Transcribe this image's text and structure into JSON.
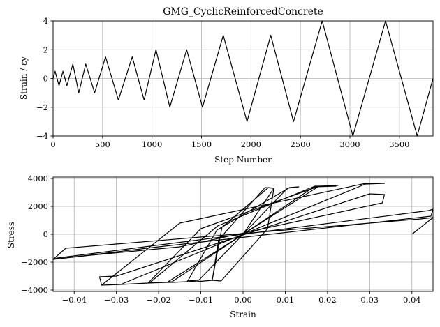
{
  "chart_data": [
    {
      "type": "line",
      "title": "GMG_CyclicReinforcedConcrete",
      "xlabel": "Step Number",
      "ylabel": "Strain / εy",
      "xlim": [
        0,
        3840
      ],
      "ylim": [
        -4,
        4
      ],
      "xticks": [
        0,
        500,
        1000,
        1500,
        2000,
        2500,
        3000,
        3500
      ],
      "xtick_labels": [
        "0",
        "500",
        "1000",
        "1500",
        "2000",
        "2500",
        "3000",
        "3500"
      ],
      "yticks": [
        -4,
        -2,
        0,
        2,
        4
      ],
      "ytick_labels": [
        "−4",
        "−2",
        "0",
        "2",
        "4"
      ],
      "grid": true,
      "series": [
        {
          "x": [
            0,
            20,
            60,
            100,
            140,
            200,
            260,
            330,
            420,
            530,
            660,
            800,
            920,
            1040,
            1180,
            1350,
            1510,
            1720,
            1960,
            2200,
            2430,
            2720,
            3030,
            3360,
            3680,
            3840
          ],
          "y": [
            0,
            0.5,
            -0.5,
            0.5,
            -0.5,
            1,
            -1,
            1,
            -1,
            1.5,
            -1.5,
            1.5,
            -1.5,
            2,
            -2,
            2,
            -2,
            3,
            -3,
            3,
            -3,
            4,
            -4,
            4,
            -4,
            0
          ]
        }
      ]
    },
    {
      "type": "line",
      "title": "",
      "xlabel": "Strain",
      "ylabel": "Stress",
      "xlim": [
        -0.045,
        0.045
      ],
      "ylim": [
        -4100,
        4100
      ],
      "xticks": [
        -0.04,
        -0.03,
        -0.02,
        -0.01,
        0,
        0.01,
        0.02,
        0.03,
        0.04
      ],
      "xtick_labels": [
        "−0.04",
        "−0.03",
        "−0.02",
        "−0.01",
        "0.00",
        "0.01",
        "0.02",
        "0.03",
        "0.04"
      ],
      "yticks": [
        -4000,
        -2000,
        0,
        2000,
        4000
      ],
      "ytick_labels": [
        "−4000",
        "−2000",
        "0",
        "2000",
        "4000"
      ],
      "grid": true,
      "series": [
        {
          "x": [
            0,
            0.0073,
            0.0052,
            -0.0058,
            -0.0073,
            -0.0052,
            0.0058,
            0.0073,
            0.006,
            -0.005,
            -0.0073,
            -0.011,
            -0.0132,
            -0.0105,
            0.0105,
            0.0132,
            0.011,
            -0.0062,
            -0.0132,
            -0.0168,
            -0.022,
            -0.0168,
            0.0168,
            0.022,
            0.017,
            -0.006,
            -0.022,
            -0.0225,
            -0.018,
            0.018,
            0.0225,
            0.018,
            -0.01,
            -0.0225,
            -0.029,
            -0.0335,
            -0.029,
            0.029,
            0.0335,
            0.029,
            -0.015,
            -0.0335,
            -0.034,
            -0.03,
            0.03,
            0.0335,
            0.033,
            -0.015,
            -0.036,
            -0.045,
            -0.044,
            0.044,
            0.045,
            0.0445,
            -0.02,
            -0.045,
            -0.042,
            0.042,
            0.045,
            0.04
          ],
          "y": [
            0,
            3300,
            3350,
            -400,
            -3300,
            -3350,
            400,
            3300,
            3350,
            500,
            -3300,
            -3400,
            -3350,
            -3300,
            3300,
            3400,
            3350,
            300,
            -3400,
            -3450,
            -3450,
            -3400,
            3400,
            3450,
            3450,
            600,
            -3450,
            -3500,
            -3450,
            3450,
            3500,
            3450,
            400,
            -3500,
            -3600,
            -3650,
            -3600,
            3600,
            3650,
            3650,
            800,
            -3650,
            -3050,
            -3000,
            2900,
            2850,
            2250,
            -900,
            -1500,
            -1800,
            -1700,
            1700,
            1800,
            1300,
            -900,
            -1800,
            -1000,
            1100,
            1200,
            0
          ]
        }
      ]
    }
  ]
}
